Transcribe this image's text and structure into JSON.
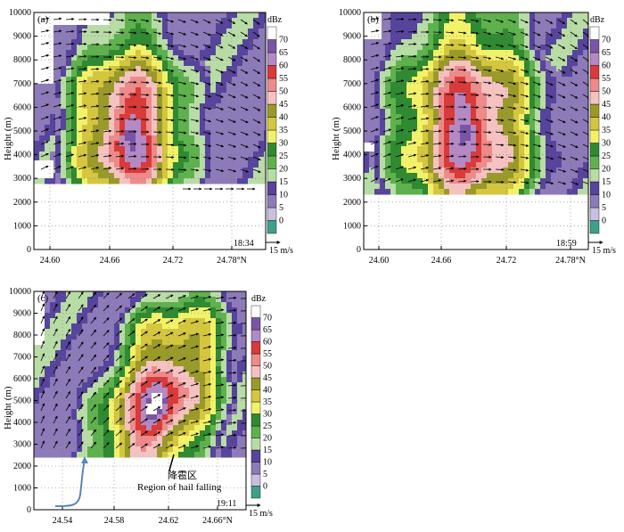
{
  "colorbar": {
    "unit": "dBz",
    "levels": [
      0,
      5,
      10,
      15,
      20,
      25,
      30,
      35,
      40,
      45,
      50,
      55,
      60,
      65,
      70
    ],
    "colors": [
      "#3fa08a",
      "#c7c0df",
      "#8d7ab8",
      "#57449c",
      "#b8dca6",
      "#5fb14e",
      "#2f8a32",
      "#f2f26a",
      "#d4c63f",
      "#9a9a2a",
      "#f5c2c2",
      "#ee8a8a",
      "#d93a3a",
      "#b489c4",
      "#7a55a6",
      "#ffffff"
    ]
  },
  "vector_scale_label": "15 m/s",
  "annotation": {
    "cn": "降雹区",
    "en": "Region of hail falling"
  },
  "chart_data": [
    {
      "type": "heatmap",
      "panel_label": "(a)",
      "time": "18:34",
      "ylabel": "Height (m)",
      "xlabel": "",
      "x_ticks": [
        "24.60",
        "24.66",
        "24.72",
        "24.78°N"
      ],
      "y_ticks": [
        "0",
        "1000",
        "2000",
        "3000",
        "4000",
        "5000",
        "6000",
        "7000",
        "8000",
        "9000",
        "10000"
      ],
      "xlim": [
        24.58,
        24.78
      ],
      "ylim": [
        0,
        10000
      ],
      "storm": {
        "center_lat": 24.66,
        "center_height": 5000,
        "peak_dbz": 70,
        "base_height": 3000,
        "top_height": 10000
      }
    },
    {
      "type": "heatmap",
      "panel_label": "(b)",
      "time": "18:59",
      "ylabel": "Height (m)",
      "xlabel": "",
      "x_ticks": [
        "24.60",
        "24.66",
        "24.72",
        "24.78°N"
      ],
      "y_ticks": [
        "0",
        "1000",
        "2000",
        "3000",
        "4000",
        "5000",
        "6000",
        "7000",
        "8000",
        "9000",
        "10000"
      ],
      "xlim": [
        24.58,
        24.78
      ],
      "ylim": [
        0,
        10000
      ],
      "storm": {
        "center_lat": 24.67,
        "center_height": 5200,
        "peak_dbz": 70,
        "base_height": 2500,
        "top_height": 10000
      }
    },
    {
      "type": "heatmap",
      "panel_label": "(c)",
      "time": "19:11",
      "ylabel": "Height (m)",
      "xlabel": "",
      "x_ticks": [
        "24.54",
        "24.58",
        "24.62",
        "24.66°N"
      ],
      "y_ticks": [
        "0",
        "1000",
        "2000",
        "3000",
        "4000",
        "5000",
        "6000",
        "7000",
        "8000",
        "9000",
        "10000"
      ],
      "xlim": [
        24.53,
        24.66
      ],
      "ylim": [
        0,
        10000
      ],
      "storm": {
        "center_lat": 24.605,
        "center_height": 5000,
        "peak_dbz": 70,
        "base_height": 2500,
        "top_height": 10000
      }
    }
  ]
}
